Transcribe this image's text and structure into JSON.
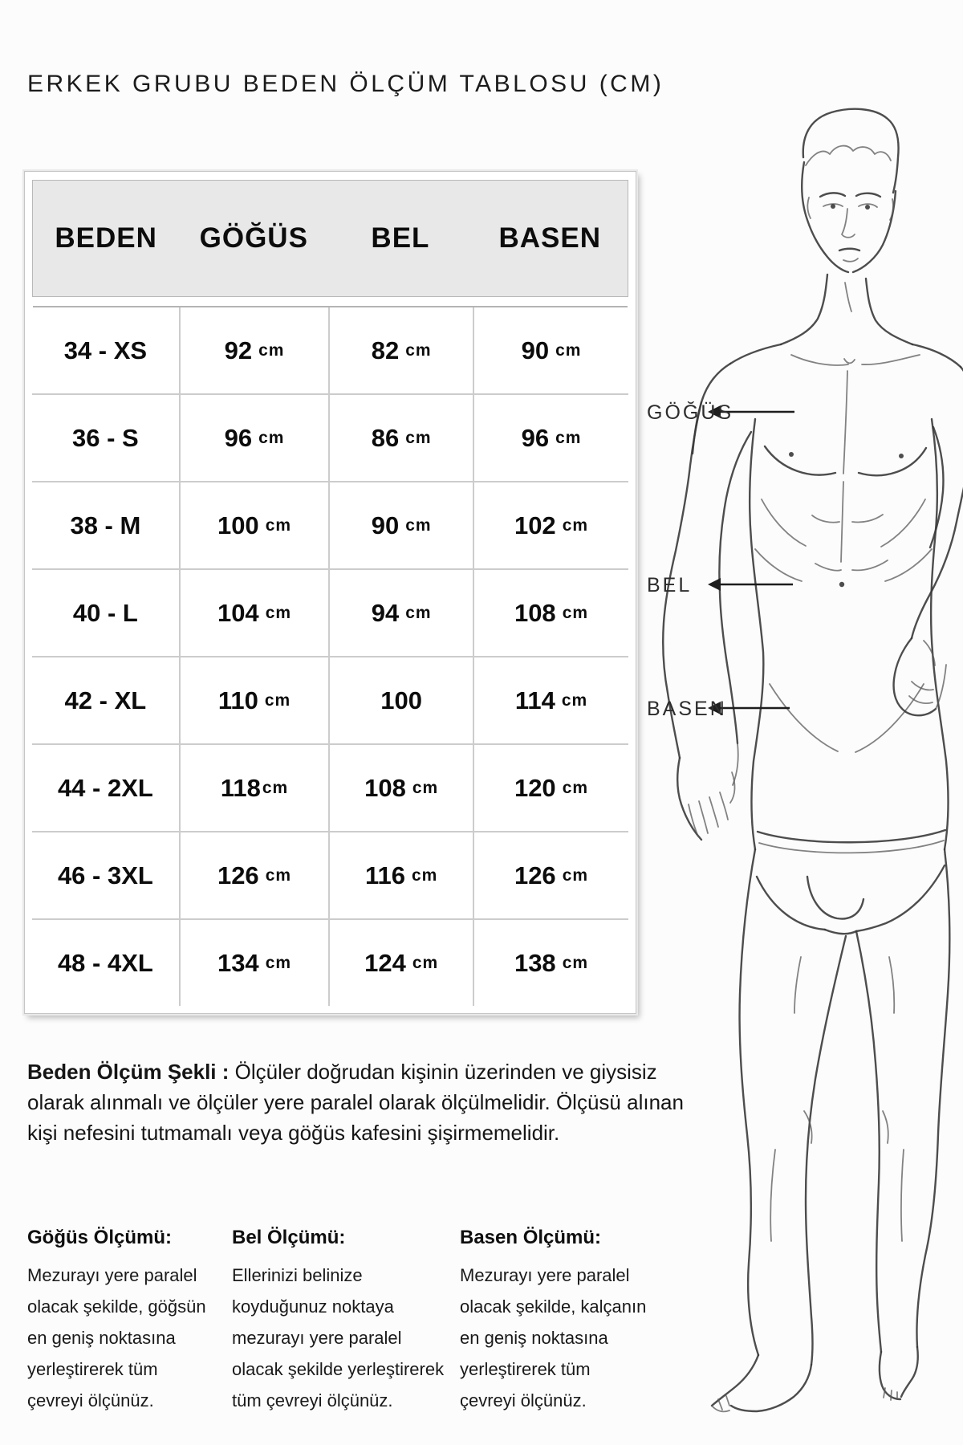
{
  "page": {
    "title": "ERKEK GRUBU BEDEN ÖLÇÜM TABLOSU (CM)"
  },
  "table": {
    "headers": [
      "BEDEN",
      "GÖĞÜS",
      "BEL",
      "BASEN"
    ],
    "rows": [
      [
        "34 - XS",
        "92 cm",
        "82 cm",
        "90 cm"
      ],
      [
        "36 - S",
        "96 cm",
        "86 cm",
        "96 cm"
      ],
      [
        "38 - M",
        "100 cm",
        "90 cm",
        "102 cm"
      ],
      [
        "40 - L",
        "104 cm",
        "94 cm",
        "108 cm"
      ],
      [
        "42 - XL",
        "110 cm",
        "100",
        "114 cm"
      ],
      [
        "44 - 2XL",
        "118cm",
        "108 cm",
        "120 cm"
      ],
      [
        "46 - 3XL",
        "126 cm",
        "116 cm",
        "126 cm"
      ],
      [
        "48 - 4XL",
        "134 cm",
        "124 cm",
        "138 cm"
      ]
    ]
  },
  "figure": {
    "labels": {
      "gogus": "GÖĞÜS",
      "bel": "BEL",
      "basen": "BASEN"
    }
  },
  "intro": {
    "lead": "Beden Ölçüm Şekli :",
    "lines": [
      "Ölçüler doğrudan kişinin üzerinden ve giysisiz",
      "olarak alınmalı ve ölçüler yere paralel olarak ölçülmelidir. Ölçüsü alınan",
      "kişi nefesini tutmamalı veya göğüs kafesini şişirmemelidir."
    ]
  },
  "columns": [
    {
      "heading": "Göğüs Ölçümü:",
      "lines": [
        "Mezurayı yere paralel",
        "olacak şekilde, göğsün",
        "en geniş noktasına",
        "yerleştirerek tüm",
        "çevreyi ölçünüz."
      ]
    },
    {
      "heading": "Bel Ölçümü:",
      "lines": [
        "Ellerinizi belinize",
        "koyduğunuz noktaya",
        "mezurayı yere paralel",
        "olacak şekilde  yerleştirerek",
        "tüm çevreyi ölçünüz."
      ]
    },
    {
      "heading": "Basen Ölçümü:",
      "lines": [
        "Mezurayı yere paralel",
        "olacak şekilde, kalçanın",
        "en geniş noktasına",
        "yerleştirerek tüm",
        "çevreyi ölçünüz."
      ]
    }
  ],
  "colors": {
    "header_bg": "#e8e8e8",
    "table_border": "#cccccc",
    "text": "#111111",
    "sketch_stroke": "#3a3a3a"
  }
}
